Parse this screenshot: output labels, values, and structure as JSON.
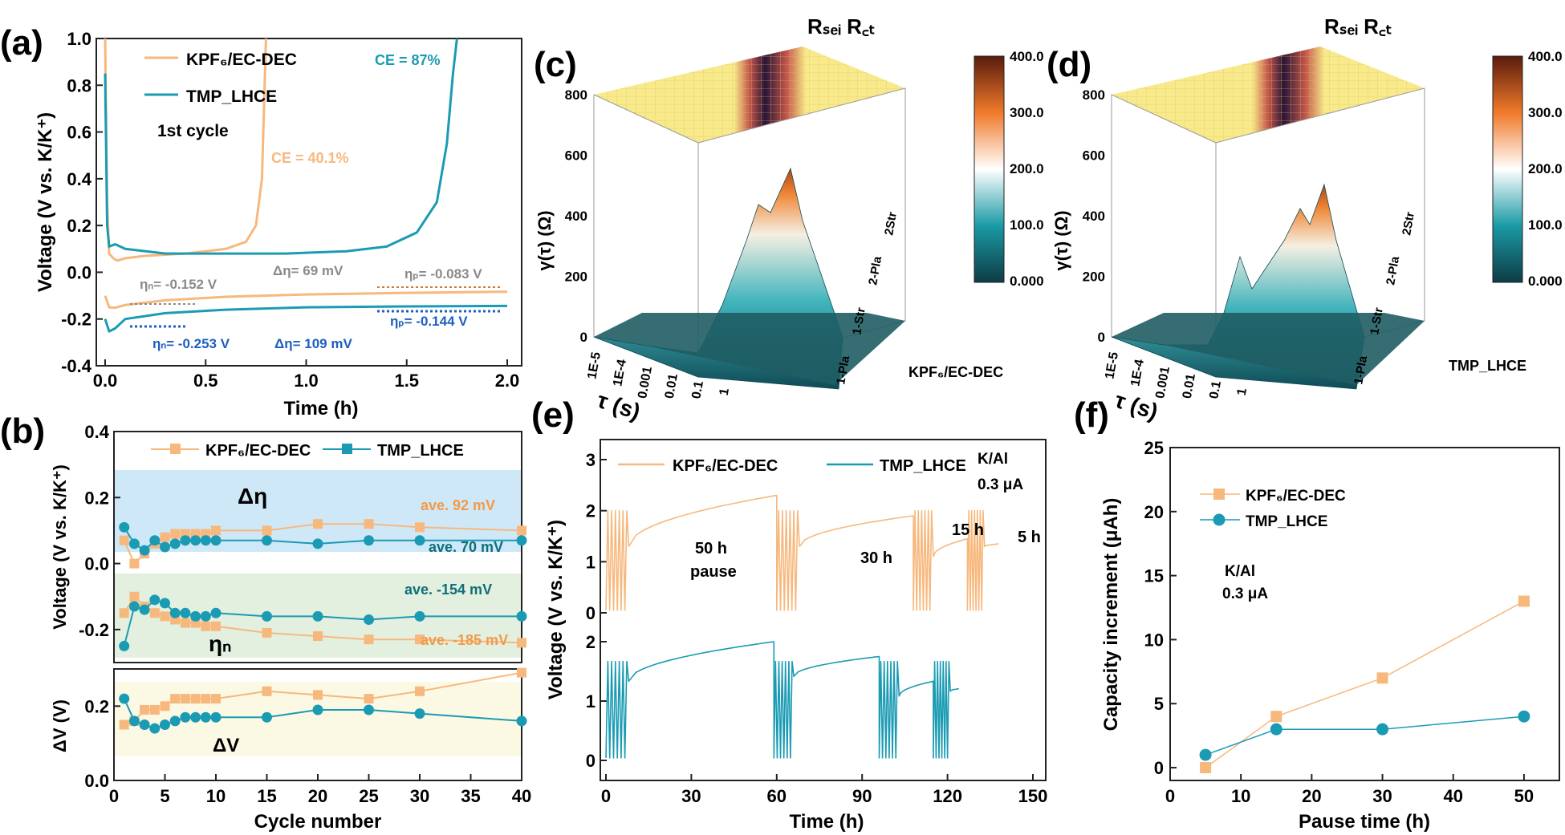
{
  "colors": {
    "kpf6": "#f7b87d",
    "tmp": "#1a9bb3",
    "gray": "#8a8a8a",
    "blue_text": "#1d5fc2",
    "orange_text": "#f29a4b",
    "teal_text": "#0f6f7a"
  },
  "panel_labels": {
    "a": "(a)",
    "b": "(b)",
    "c": "(c)",
    "d": "(d)",
    "e": "(e)",
    "f": "(f)"
  },
  "panel_a": {
    "xlabel": "Time (h)",
    "ylabel": "Voltage (V vs. K/K⁺)",
    "xticks": [
      "0.0",
      "0.5",
      "1.0",
      "1.5",
      "2.0"
    ],
    "yticks": [
      "-0.4",
      "-0.2",
      "0.0",
      "0.2",
      "0.4",
      "0.6",
      "0.8",
      "1.0"
    ],
    "legend": [
      "KPF₆/EC-DEC",
      "TMP_LHCE"
    ],
    "annotations": {
      "cycle": "1st cycle",
      "ce_tmp": "CE = 87%",
      "ce_kpf": "CE = 40.1%",
      "eta_n_kpf": "ηₙ= -0.152 V",
      "deta_kpf": "Δη= 69 mV",
      "eta_p_kpf": "ηₚ= -0.083 V",
      "eta_n_tmp": "ηₙ= -0.253 V",
      "deta_tmp": "Δη= 109 mV",
      "eta_p_tmp": "ηₚ= -0.144 V"
    }
  },
  "panel_b": {
    "xlabel": "Cycle number",
    "ylabel_top": "Voltage (V vs. K/K⁺)",
    "ylabel_bot": "ΔV (V)",
    "xticks": [
      "0",
      "5",
      "10",
      "15",
      "20",
      "25",
      "30",
      "35",
      "40"
    ],
    "yticks_top": [
      "-0.2",
      "0.0",
      "0.2",
      "0.4"
    ],
    "yticks_bot": [
      "0.0",
      "0.2"
    ],
    "legend": [
      "KPF₆/EC-DEC",
      "TMP_LHCE"
    ],
    "annotations": {
      "deta": "Δη",
      "etan": "ηₙ",
      "dv": "ΔV",
      "ave92": "ave. 92 mV",
      "ave70": "ave. 70 mV",
      "ave154": "ave. -154 mV",
      "ave185": "ave. -185 mV"
    }
  },
  "panel_c": {
    "peaks": "Rₛₑᵢ  R꜀ₜ",
    "ylabel": "γ(τ) (Ω)",
    "xlabel": "τ (s)",
    "title": "KPF₆/EC-DEC",
    "zticks": [
      "0",
      "200",
      "400",
      "600",
      "800"
    ],
    "xticks": [
      "1E-5",
      "1E-4",
      "0.001",
      "0.01",
      "0.1",
      "1"
    ],
    "steps": [
      "1-Pla",
      "1-Str",
      "2-Pla",
      "2Str"
    ],
    "colorbar": [
      "400.0",
      "300.0",
      "200.0",
      "100.0",
      "0.000"
    ]
  },
  "panel_d": {
    "peaks": "Rₛₑᵢ  R꜀ₜ",
    "ylabel": "γ(τ) (Ω)",
    "xlabel": "τ (s)",
    "title": "TMP_LHCE",
    "zticks": [
      "0",
      "200",
      "400",
      "600",
      "800"
    ],
    "xticks": [
      "1E-5",
      "1E-4",
      "0.001",
      "0.01",
      "0.1",
      "1"
    ],
    "steps": [
      "1-Pla",
      "1-Str",
      "2-Pla",
      "2Str"
    ],
    "colorbar": [
      "400.0",
      "300.0",
      "200.0",
      "100.0",
      "0.000"
    ]
  },
  "panel_e": {
    "xlabel": "Time (h)",
    "ylabel": "Voltage (V vs. K/K⁺)",
    "xticks": [
      "0",
      "30",
      "60",
      "90",
      "120",
      "150"
    ],
    "yticks_top": [
      "0",
      "1",
      "2",
      "3"
    ],
    "yticks_bot": [
      "0",
      "1",
      "2"
    ],
    "legend": [
      "KPF₆/EC-DEC",
      "TMP_LHCE"
    ],
    "cond1": "K/Al",
    "cond2": "0.3 μA",
    "pauses": [
      "50 h",
      "pause",
      "30 h",
      "15 h",
      "5 h"
    ]
  },
  "panel_f": {
    "xlabel": "Pause time (h)",
    "ylabel": "Capacity increment (μAh)",
    "xticks": [
      "0",
      "10",
      "20",
      "30",
      "40",
      "50"
    ],
    "yticks": [
      "0",
      "5",
      "10",
      "15",
      "20",
      "25"
    ],
    "legend": [
      "KPF₆/EC-DEC",
      "TMP_LHCE"
    ],
    "cond1": "K/Al",
    "cond2": "0.3 μA"
  },
  "chart_data": [
    {
      "panel": "a",
      "type": "line",
      "xlim": [
        0,
        2.0
      ],
      "ylim": [
        -0.4,
        1.0
      ],
      "series": [
        {
          "name": "KPF₆/EC-DEC",
          "x": [
            0.0,
            0.01,
            0.02,
            0.04,
            0.06,
            0.1,
            0.2,
            0.4,
            0.6,
            0.7,
            0.75,
            0.78,
            0.8
          ],
          "y": [
            1.0,
            0.3,
            0.08,
            0.06,
            0.05,
            0.06,
            0.07,
            0.08,
            0.1,
            0.13,
            0.2,
            0.4,
            1.0
          ]
        },
        {
          "name": "KPF₆/EC-DEC (plating)",
          "x": [
            0.0,
            0.02,
            0.05,
            0.1,
            0.3,
            0.6,
            1.0,
            1.5,
            2.0
          ],
          "y": [
            -0.1,
            -0.15,
            -0.152,
            -0.14,
            -0.12,
            -0.105,
            -0.095,
            -0.088,
            -0.083
          ]
        },
        {
          "name": "TMP_LHCE",
          "x": [
            0.0,
            0.01,
            0.02,
            0.05,
            0.1,
            0.3,
            0.6,
            0.9,
            1.2,
            1.4,
            1.55,
            1.65,
            1.7,
            1.73,
            1.75
          ],
          "y": [
            0.85,
            0.2,
            0.11,
            0.12,
            0.1,
            0.08,
            0.08,
            0.08,
            0.09,
            0.11,
            0.17,
            0.3,
            0.55,
            0.85,
            1.0
          ]
        },
        {
          "name": "TMP_LHCE (plating)",
          "x": [
            0.0,
            0.02,
            0.05,
            0.1,
            0.3,
            0.6,
            1.0,
            1.5,
            2.0
          ],
          "y": [
            -0.2,
            -0.253,
            -0.24,
            -0.2,
            -0.175,
            -0.16,
            -0.15,
            -0.146,
            -0.144
          ]
        }
      ]
    },
    {
      "panel": "b",
      "type": "line",
      "sub": "top",
      "xlim": [
        0,
        40
      ],
      "ylim": [
        -0.3,
        0.4
      ],
      "x": [
        1,
        2,
        3,
        4,
        5,
        6,
        7,
        8,
        9,
        10,
        15,
        20,
        25,
        30,
        40
      ],
      "series": [
        {
          "name": "KPF₆/EC-DEC",
          "values": [
            0.07,
            0.0,
            0.03,
            0.06,
            0.08,
            0.09,
            0.09,
            0.09,
            0.09,
            0.1,
            0.1,
            0.12,
            0.12,
            0.11,
            0.1
          ]
        },
        {
          "name": "KPF₆/EC-DEC ηₙ",
          "values": [
            -0.15,
            -0.1,
            -0.13,
            -0.15,
            -0.16,
            -0.17,
            -0.18,
            -0.18,
            -0.19,
            -0.19,
            -0.21,
            -0.22,
            -0.23,
            -0.23,
            -0.24
          ]
        },
        {
          "name": "TMP_LHCE",
          "values": [
            0.11,
            0.06,
            0.04,
            0.07,
            0.05,
            0.06,
            0.07,
            0.07,
            0.07,
            0.07,
            0.07,
            0.06,
            0.07,
            0.07,
            0.07
          ]
        },
        {
          "name": "TMP_LHCE ηₙ",
          "values": [
            -0.25,
            -0.13,
            -0.14,
            -0.11,
            -0.12,
            -0.15,
            -0.15,
            -0.16,
            -0.16,
            -0.15,
            -0.16,
            -0.16,
            -0.17,
            -0.16,
            -0.16
          ]
        }
      ]
    },
    {
      "panel": "b",
      "type": "line",
      "sub": "bottom",
      "xlim": [
        0,
        40
      ],
      "ylim": [
        0,
        0.3
      ],
      "x": [
        1,
        2,
        3,
        4,
        5,
        6,
        7,
        8,
        9,
        10,
        15,
        20,
        25,
        30,
        40
      ],
      "series": [
        {
          "name": "KPF₆/EC-DEC",
          "values": [
            0.15,
            0.16,
            0.19,
            0.19,
            0.2,
            0.22,
            0.22,
            0.22,
            0.22,
            0.22,
            0.24,
            0.23,
            0.22,
            0.24,
            0.29
          ]
        },
        {
          "name": "TMP_LHCE",
          "values": [
            0.22,
            0.16,
            0.15,
            0.14,
            0.15,
            0.16,
            0.17,
            0.17,
            0.17,
            0.17,
            0.17,
            0.19,
            0.19,
            0.18,
            0.16
          ]
        }
      ]
    },
    {
      "panel": "e",
      "type": "line",
      "xlim": [
        0,
        150
      ],
      "series": [
        {
          "name": "KPF₆/EC-DEC",
          "segments": [
            {
              "t": [
                8,
                60
              ],
              "v0": 1.3,
              "v1": 2.3
            },
            {
              "t": [
                68,
                108
              ],
              "v0": 1.3,
              "v1": 1.9
            },
            {
              "t": [
                115,
                127
              ],
              "v0": 1.1,
              "v1": 1.45
            },
            {
              "t": [
                133,
                138
              ],
              "v0": 1.3,
              "v1": 1.35
            }
          ]
        },
        {
          "name": "TMP_LHCE",
          "segments": [
            {
              "t": [
                8,
                59
              ],
              "v0": 1.6,
              "v1": 2.4
            },
            {
              "t": [
                66,
                96
              ],
              "v0": 1.7,
              "v1": 2.1
            },
            {
              "t": [
                103,
                115
              ],
              "v0": 1.3,
              "v1": 1.6
            },
            {
              "t": [
                121,
                124
              ],
              "v0": 1.4,
              "v1": 1.45
            }
          ]
        }
      ]
    },
    {
      "panel": "f",
      "type": "scatter",
      "xlim": [
        0,
        55
      ],
      "ylim": [
        -1,
        25
      ],
      "x": [
        5,
        15,
        30,
        50
      ],
      "series": [
        {
          "name": "KPF₆/EC-DEC",
          "values": [
            0,
            4,
            7,
            13
          ]
        },
        {
          "name": "TMP_LHCE",
          "values": [
            1,
            3,
            3,
            4
          ]
        }
      ]
    }
  ]
}
